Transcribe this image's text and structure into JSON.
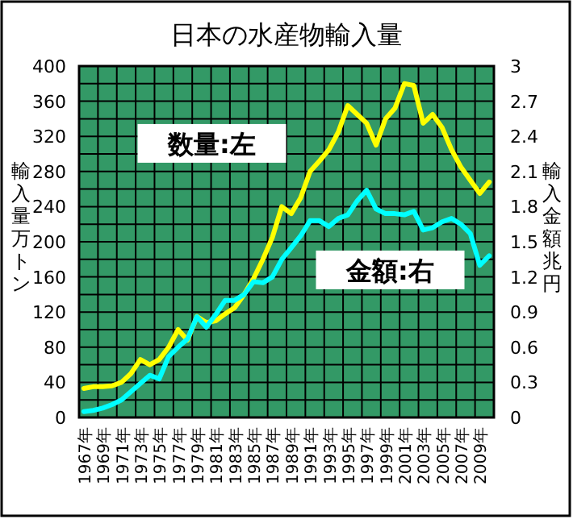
{
  "chart_data": {
    "type": "line",
    "title": "日本の水産物輸入量",
    "ylabel": "輸入量万トン",
    "y2label": "輸入金額兆円",
    "categories": [
      "1967年",
      null,
      "1969年",
      null,
      "1971年",
      null,
      "1973年",
      null,
      "1975年",
      null,
      "1977年",
      null,
      "1979年",
      null,
      "1981年",
      null,
      "1983年",
      null,
      "1985年",
      null,
      "1987年",
      null,
      "1989年",
      null,
      "1991年",
      null,
      "1993年",
      null,
      "1995年",
      null,
      "1997年",
      null,
      "1999年",
      null,
      "2001年",
      null,
      "2003年",
      null,
      "2005年",
      null,
      "2007年",
      null,
      "2009年",
      null
    ],
    "series": [
      {
        "name": "数量:左",
        "color": "#ffff00",
        "values": [
          33,
          35,
          35,
          36,
          40,
          50,
          66,
          60,
          66,
          80,
          100,
          88,
          115,
          108,
          110,
          118,
          125,
          140,
          158,
          180,
          205,
          240,
          232,
          250,
          280,
          292,
          305,
          325,
          355,
          345,
          335,
          310,
          340,
          352,
          380,
          378,
          335,
          345,
          330,
          305,
          285,
          270,
          255,
          268
        ]
      },
      {
        "name": "金額:右",
        "color": "#00ffff",
        "axis": "y2",
        "values": [
          0.05,
          0.06,
          0.08,
          0.11,
          0.15,
          0.22,
          0.29,
          0.36,
          0.33,
          0.52,
          0.6,
          0.67,
          0.86,
          0.77,
          0.88,
          1.0,
          1.0,
          1.05,
          1.16,
          1.15,
          1.2,
          1.35,
          1.45,
          1.55,
          1.68,
          1.68,
          1.63,
          1.7,
          1.73,
          1.85,
          1.94,
          1.78,
          1.74,
          1.74,
          1.73,
          1.76,
          1.6,
          1.62,
          1.67,
          1.7,
          1.65,
          1.57,
          1.3,
          1.38
        ]
      }
    ],
    "ylim": [
      0,
      400
    ],
    "yticks": [
      0,
      40,
      80,
      120,
      160,
      200,
      240,
      280,
      320,
      360,
      400
    ],
    "y2lim": [
      0,
      3
    ],
    "y2ticks": [
      0,
      0.3,
      0.6,
      0.9,
      1.2,
      1.5,
      1.8,
      2.1,
      2.4,
      2.7,
      3
    ],
    "grid": true,
    "marker": "none",
    "line_style": "solid"
  }
}
